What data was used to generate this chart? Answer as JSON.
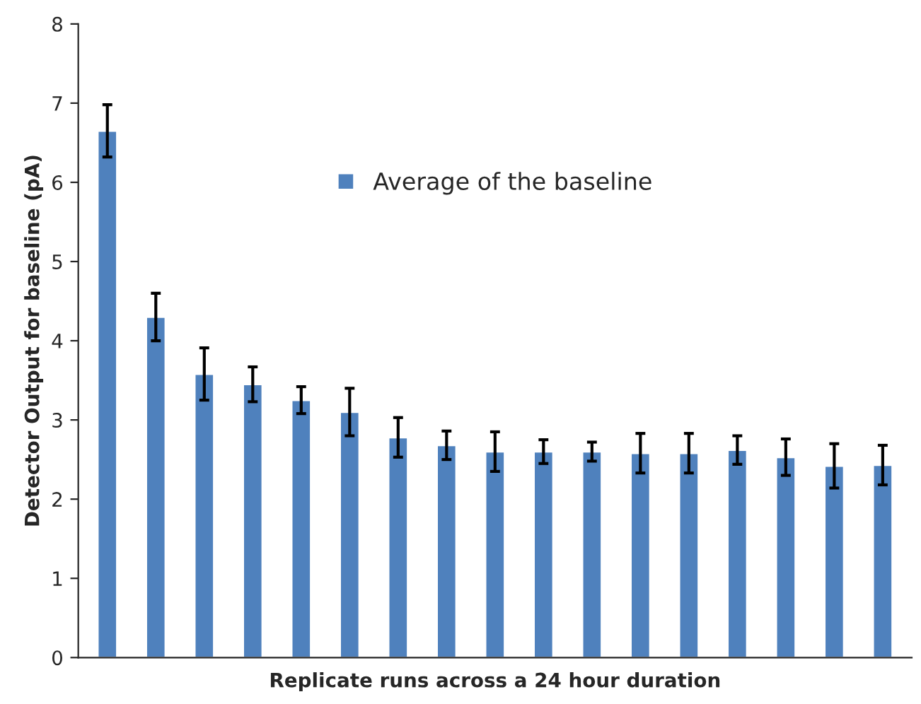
{
  "chart_data": {
    "type": "bar",
    "xlabel": "Replicate runs across a 24 hour duration",
    "ylabel": "Detector Output for baseline (pA)",
    "categories": [
      null,
      null,
      null,
      null,
      null,
      null,
      null,
      null,
      null,
      null,
      null,
      null,
      null,
      null,
      null,
      null,
      null
    ],
    "series": [
      {
        "name": "Average of the baseline",
        "color": "#4f81bd",
        "values": [
          6.65,
          4.3,
          3.58,
          3.45,
          3.25,
          3.1,
          2.78,
          2.68,
          2.6,
          2.6,
          2.6,
          2.58,
          2.58,
          2.62,
          2.53,
          2.42,
          2.43
        ],
        "errors": [
          0.33,
          0.3,
          0.33,
          0.22,
          0.17,
          0.3,
          0.25,
          0.18,
          0.25,
          0.15,
          0.12,
          0.25,
          0.25,
          0.18,
          0.23,
          0.28,
          0.25
        ]
      }
    ],
    "ylim": [
      0,
      8
    ],
    "yticks": [
      0,
      1,
      2,
      3,
      4,
      5,
      6,
      7,
      8
    ],
    "tick_labels": "y",
    "legend": "top",
    "grid": false
  }
}
